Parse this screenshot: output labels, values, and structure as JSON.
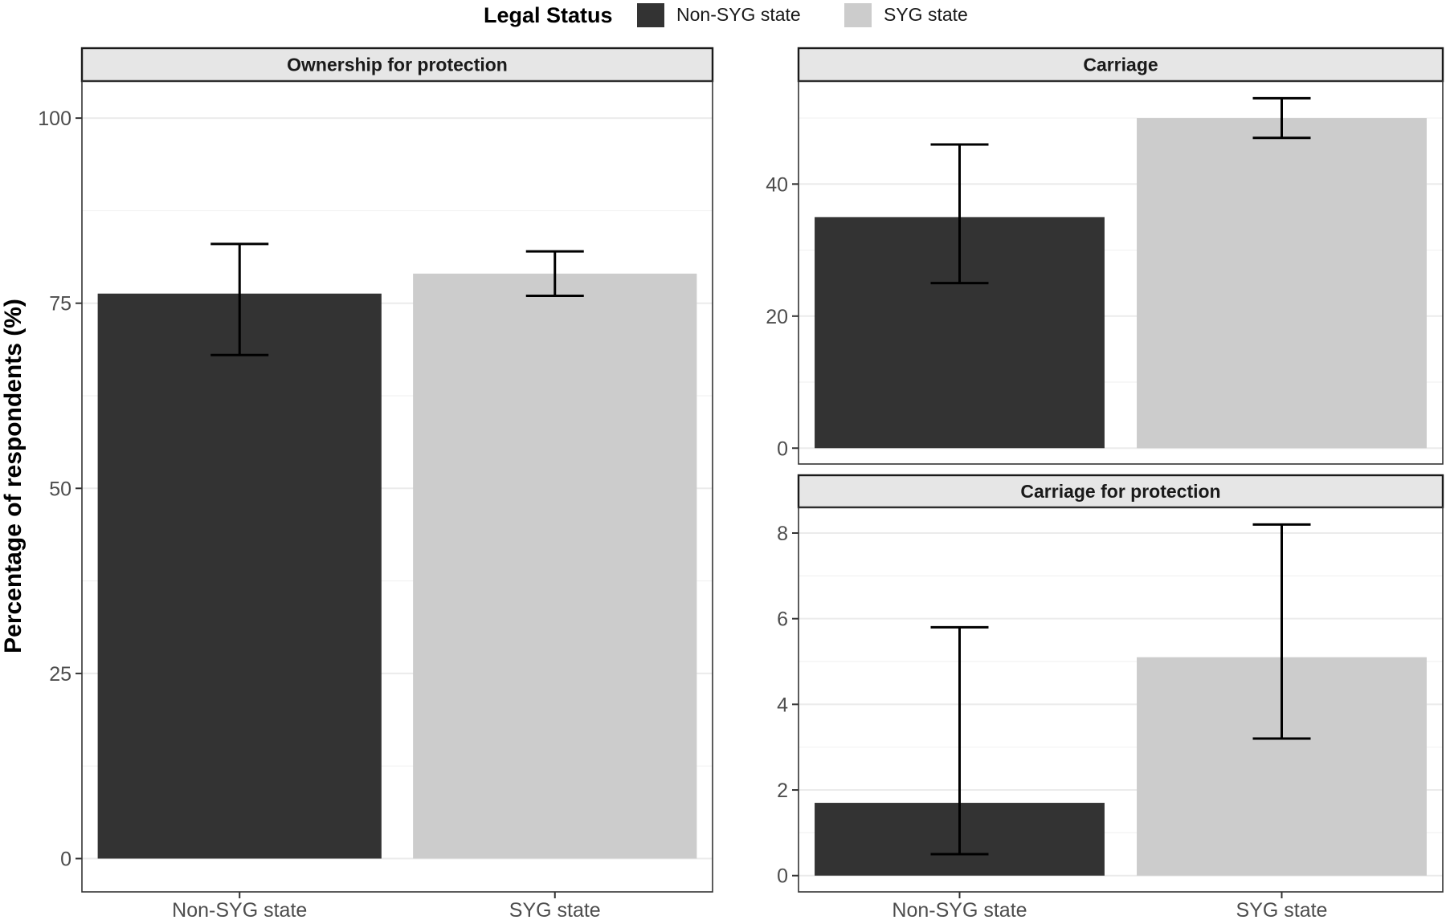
{
  "legend": {
    "title": "Legal Status",
    "items": [
      {
        "label": "Non-SYG state",
        "color": "#333333"
      },
      {
        "label": "SYG state",
        "color": "#cccccc"
      }
    ]
  },
  "ylabel": "Percentage of respondents (%)",
  "chart_data": [
    {
      "type": "bar",
      "title": "Ownership for protection",
      "categories": [
        "Non-SYG state",
        "SYG state"
      ],
      "values": [
        76.3,
        79
      ],
      "error_low": [
        68,
        76
      ],
      "error_high": [
        83,
        82
      ],
      "colors": [
        "#333333",
        "#cccccc"
      ],
      "ylim": [
        -4.5,
        105
      ],
      "yticks": [
        0,
        25,
        50,
        75,
        100
      ],
      "grid": true
    },
    {
      "type": "bar",
      "title": "Carriage",
      "categories": [
        "Non-SYG state",
        "SYG state"
      ],
      "values": [
        35,
        50
      ],
      "error_low": [
        25,
        47
      ],
      "error_high": [
        46,
        53
      ],
      "colors": [
        "#333333",
        "#cccccc"
      ],
      "ylim": [
        -2.4,
        55.6
      ],
      "yticks": [
        0,
        20,
        40
      ],
      "grid": true
    },
    {
      "type": "bar",
      "title": "Carriage for protection",
      "categories": [
        "Non-SYG state",
        "SYG state"
      ],
      "values": [
        1.7,
        5.1
      ],
      "error_low": [
        0.5,
        3.2
      ],
      "error_high": [
        5.8,
        8.2
      ],
      "colors": [
        "#333333",
        "#cccccc"
      ],
      "ylim": [
        -0.38,
        8.6
      ],
      "yticks": [
        0,
        2,
        4,
        6,
        8
      ],
      "grid": true
    }
  ]
}
